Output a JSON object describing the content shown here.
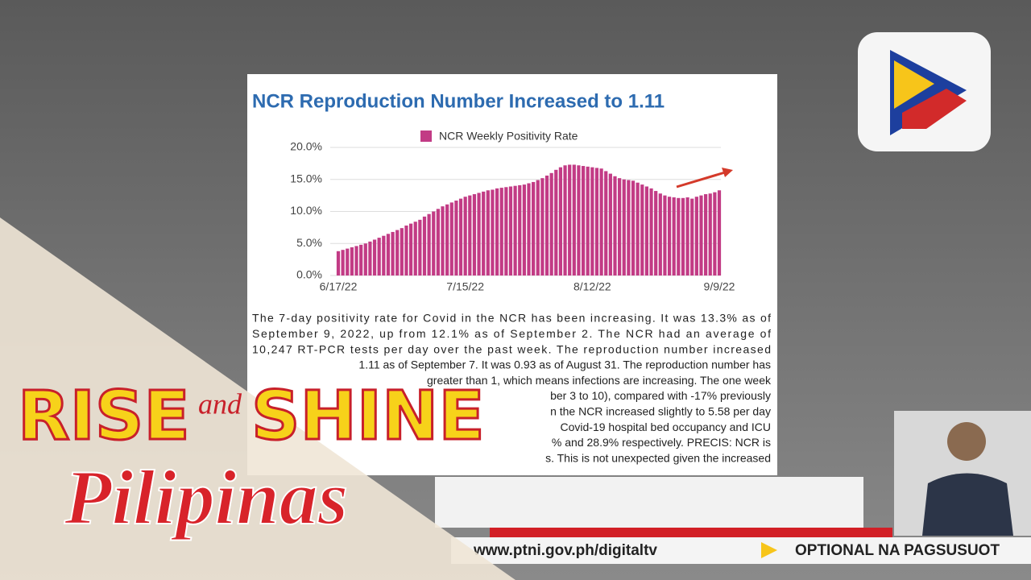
{
  "chart_data": {
    "type": "bar",
    "title": "NCR Reproduction Number Increased to 1.11",
    "categories": [
      "6/17/22",
      null,
      null,
      null,
      null,
      null,
      null,
      null,
      null,
      null,
      null,
      null,
      null,
      null,
      null,
      null,
      null,
      null,
      null,
      null,
      null,
      null,
      null,
      null,
      null,
      null,
      null,
      null,
      "7/15/22",
      null,
      null,
      null,
      null,
      null,
      null,
      null,
      null,
      null,
      null,
      null,
      null,
      null,
      null,
      null,
      null,
      null,
      null,
      null,
      null,
      null,
      null,
      null,
      null,
      null,
      null,
      null,
      "8/12/22",
      null,
      null,
      null,
      null,
      null,
      null,
      null,
      null,
      null,
      null,
      null,
      null,
      null,
      null,
      null,
      null,
      null,
      null,
      null,
      null,
      null,
      null,
      null,
      null,
      null,
      null,
      null,
      "9/9/22"
    ],
    "series": [
      {
        "name": "NCR Weekly Positivity Rate",
        "color": "#c23b85",
        "values": [
          3.8,
          4.0,
          4.2,
          4.4,
          4.6,
          4.8,
          5.0,
          5.3,
          5.6,
          5.9,
          6.2,
          6.5,
          6.8,
          7.1,
          7.4,
          7.8,
          8.1,
          8.4,
          8.7,
          9.2,
          9.6,
          10.0,
          10.4,
          10.8,
          11.1,
          11.4,
          11.7,
          12.0,
          12.3,
          12.5,
          12.7,
          12.9,
          13.1,
          13.3,
          13.4,
          13.6,
          13.7,
          13.8,
          13.9,
          14.0,
          14.1,
          14.2,
          14.4,
          14.6,
          14.9,
          15.2,
          15.6,
          16.0,
          16.5,
          16.9,
          17.2,
          17.3,
          17.3,
          17.2,
          17.1,
          17.0,
          16.9,
          16.8,
          16.7,
          16.3,
          15.9,
          15.5,
          15.2,
          15.0,
          14.9,
          14.8,
          14.5,
          14.2,
          13.9,
          13.6,
          13.2,
          12.8,
          12.5,
          12.3,
          12.2,
          12.1,
          12.1,
          12.2,
          12.0,
          12.3,
          12.5,
          12.7,
          12.8,
          13.0,
          13.3
        ]
      }
    ],
    "ylim": [
      0,
      20
    ],
    "yticks": [
      {
        "value": 0,
        "label": "0.0%"
      },
      {
        "value": 5,
        "label": "5.0%"
      },
      {
        "value": 10,
        "label": "10.0%"
      },
      {
        "value": 15,
        "label": "15.0%"
      },
      {
        "value": 20,
        "label": "20.0%"
      }
    ],
    "grid": true,
    "legend": "top"
  },
  "paragraph": [
    "The 7-day positivity rate for Covid in the NCR has been increasing. It was 13.3% as of",
    "September 9, 2022, up from 12.1% as of September 2. The NCR had an average of",
    "10,247 RT-PCR tests per day over the past week. The reproduction number increased",
    "1.11 as of September 7. It was 0.93 as of August 31. The reproduction number has",
    "greater than 1, which means infections are increasing. The one week",
    "ber 3 to 10), compared with -17% previously",
    "n the NCR increased slightly to 5.58 per day",
    "Covid-19 hospital bed occupancy and ICU",
    "% and 28.9% respectively. PRECIS: NCR is",
    "s. This is not unexpected given the increased"
  ],
  "show": {
    "rise": "RISE",
    "and": "and",
    "shine": "SHINE",
    "pilipinas": "Pilipinas"
  },
  "ticker": {
    "url": "www.ptni.gov.ph/digitaltv",
    "headline": "OPTIONAL NA PAGSUSUOT"
  }
}
